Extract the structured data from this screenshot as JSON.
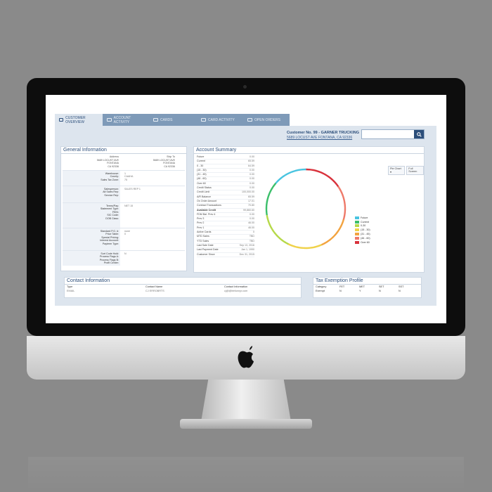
{
  "tabs": [
    {
      "label": "CUSTOMER OVERVIEW",
      "active": true
    },
    {
      "label": "ACCOUNT ACTIVITY",
      "active": false
    },
    {
      "label": "CARDS",
      "active": false
    },
    {
      "label": "CARD ACTIVITY",
      "active": false
    },
    {
      "label": "OPEN ORDERS",
      "active": false
    }
  ],
  "header": {
    "customer_title": "Customer No. 99 - GARNER TRUCKING",
    "customer_address": "5689 LOCUST AVE FONTANA, CA 92336",
    "search_placeholder": ""
  },
  "general_information": {
    "title": "General Information",
    "address": {
      "label": "Address",
      "line1": "5689 LOCUST AVE",
      "city": "FONTANA",
      "state": "CA 92336"
    },
    "ship_to": {
      "label": "Ship To",
      "line1": "5689 LOCUST AVE",
      "city": "FONTANA",
      "state": "CA 92336"
    },
    "rows": [
      {
        "labels": [
          "Warehouse:",
          "County:",
          "Sales Tax Zone:"
        ],
        "values": [
          "1",
          "CAAHA",
          "75"
        ]
      },
      {
        "labels": [
          "Salesperson:",
          "Alt Sales Rep:",
          "Service Rep:"
        ],
        "values": [
          "SALES REP 1",
          "",
          ""
        ]
      },
      {
        "labels": [
          "Terms/Pay:",
          "Statement Type:",
          "FEIN:",
          "SIC Code:",
          "DOB Class:"
        ],
        "values": [
          "NET 15",
          "",
          "",
          "",
          ""
        ]
      },
      {
        "labels": [
          "Standard P.O. #:",
          "Price Table:",
          "Special Pricing:",
          "Interest Account:",
          "Payterm Type:"
        ],
        "values": [
          "none",
          "0",
          "",
          "",
          ""
        ]
      },
      {
        "labels": [
          "Sort Code Hold:",
          "Process Flags A:",
          "Process Flags B:",
          "Profit Center:"
        ],
        "values": [
          "N",
          "",
          "",
          ""
        ]
      }
    ]
  },
  "account_summary": {
    "title": "Account Summary",
    "rows": [
      {
        "k": "Future",
        "v": "0.00"
      },
      {
        "k": "Current",
        "v": "65.59"
      },
      {
        "k": "0 - 30",
        "v": "64.59"
      },
      {
        "k": "(15 - 30)",
        "v": "0.00"
      },
      {
        "k": "(31 - 45)",
        "v": "0.00"
      },
      {
        "k": "(46 - 60)",
        "v": "0.00"
      },
      {
        "k": "Over 60",
        "v": "0.00"
      },
      {
        "k": "Credit Status",
        "v": "0.00"
      },
      {
        "k": "Credit Limit",
        "v": "100,000.00"
      },
      {
        "k": "A/R Balance",
        "v": "65.59"
      },
      {
        "k": "On Order Amount",
        "v": "17.01"
      },
      {
        "k": "Contract Transactions",
        "v": "70.80"
      },
      {
        "k": "Available Credit",
        "v": "99,860.60",
        "bold": true
      },
      {
        "k": "FDM Bal. Prev 4",
        "v": "0.00"
      },
      {
        "k": "Prev 3",
        "v": "0.00"
      },
      {
        "k": "Prev 2",
        "v": "46.00"
      },
      {
        "k": "Prev 1",
        "v": "46.00"
      },
      {
        "k": "Active Cards",
        "v": "0"
      },
      {
        "k": "MTD Sales",
        "v": "TBD"
      },
      {
        "k": "YTD Sales",
        "v": "TBD"
      },
      {
        "k": "Last Sale Date",
        "v": "Sep 13, 2016"
      },
      {
        "k": "Last Payment Date",
        "v": "Jan 1, 1990"
      },
      {
        "k": "Customer Since",
        "v": "Dec 31, 2015"
      }
    ],
    "chart_buttons": [
      "Pie Chart ▾",
      "Full Screen"
    ]
  },
  "chart_data": {
    "type": "pie",
    "categories": [
      "Future",
      "Current",
      "0-30",
      "(15 - 30)",
      "(31 - 45)",
      "(46 - 60)",
      "Over 60"
    ],
    "values": [
      0,
      65.59,
      64.59,
      0,
      0,
      0,
      0
    ],
    "legend": [
      "Future",
      "Current",
      "0-30",
      "(15 - 30)",
      "(31 - 45)",
      "(46 - 60)",
      "Over 60"
    ],
    "colors": [
      "#49c4e0",
      "#3cbf6b",
      "#b6d94a",
      "#f0d24a",
      "#f2a340",
      "#ee7a6a",
      "#d8323c"
    ],
    "legend_placement": "right"
  },
  "contact_information": {
    "title": "Contact Information",
    "headers": [
      "Type",
      "Contact Name",
      "Contact Information"
    ],
    "rows": [
      [
        "EMAIL",
        "CJ ERROBRTS",
        "cj@@bbfunnyr.com"
      ]
    ]
  },
  "tax_exemption": {
    "title": "Tax Exemption Profile",
    "headers": [
      "Category",
      "FET",
      "MET",
      "SET",
      "SST"
    ],
    "rows": [
      [
        "Exempt",
        "N",
        "Y",
        "N",
        "N"
      ]
    ]
  },
  "colors": {
    "accent": "#2c4e7a",
    "tab_bg": "#7e9ab8",
    "panel_bg": "#dde5ee"
  }
}
